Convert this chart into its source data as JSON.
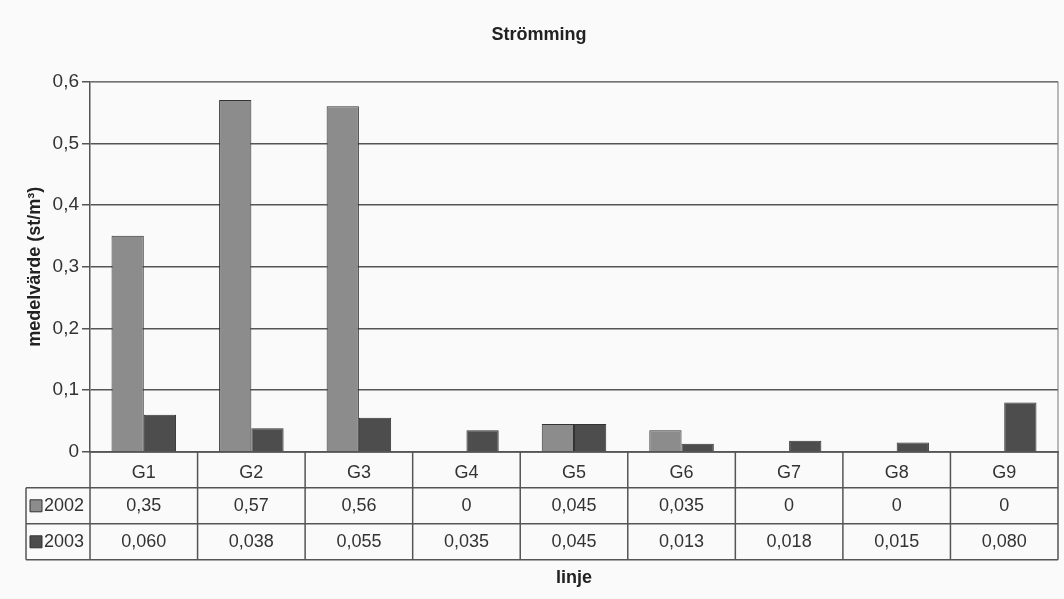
{
  "chart_data": {
    "type": "bar",
    "title": "Strömming",
    "xlabel": "linje",
    "ylabel": "medelvärde (st/m³)",
    "categories": [
      "G1",
      "G2",
      "G3",
      "G4",
      "G5",
      "G6",
      "G7",
      "G8",
      "G9"
    ],
    "series": [
      {
        "name": "2002",
        "color": "#8c8c8c",
        "values": [
          0.35,
          0.57,
          0.56,
          0,
          0.045,
          0.035,
          0,
          0,
          0
        ],
        "value_labels": [
          "0,35",
          "0,57",
          "0,56",
          "0",
          "0,045",
          "0,035",
          "0",
          "0",
          "0"
        ]
      },
      {
        "name": "2003",
        "color": "#4d4d4d",
        "values": [
          0.06,
          0.038,
          0.055,
          0.035,
          0.045,
          0.013,
          0.018,
          0.015,
          0.08
        ],
        "value_labels": [
          "0,060",
          "0,038",
          "0,055",
          "0,035",
          "0,045",
          "0,013",
          "0,018",
          "0,015",
          "0,080"
        ]
      }
    ],
    "ylim": [
      0,
      0.6
    ],
    "yticks": [
      0,
      {
        "value": 0.1,
        "label": "0,1"
      },
      {
        "value": 0.2,
        "label": "0,2"
      },
      {
        "value": 0.3,
        "label": "0,3"
      },
      {
        "value": 0.4,
        "label": "0,4"
      },
      {
        "value": 0.5,
        "label": "0,5"
      },
      {
        "value": 0.6,
        "label": "0,6"
      }
    ],
    "grid": "y",
    "legend": "bottom left"
  }
}
